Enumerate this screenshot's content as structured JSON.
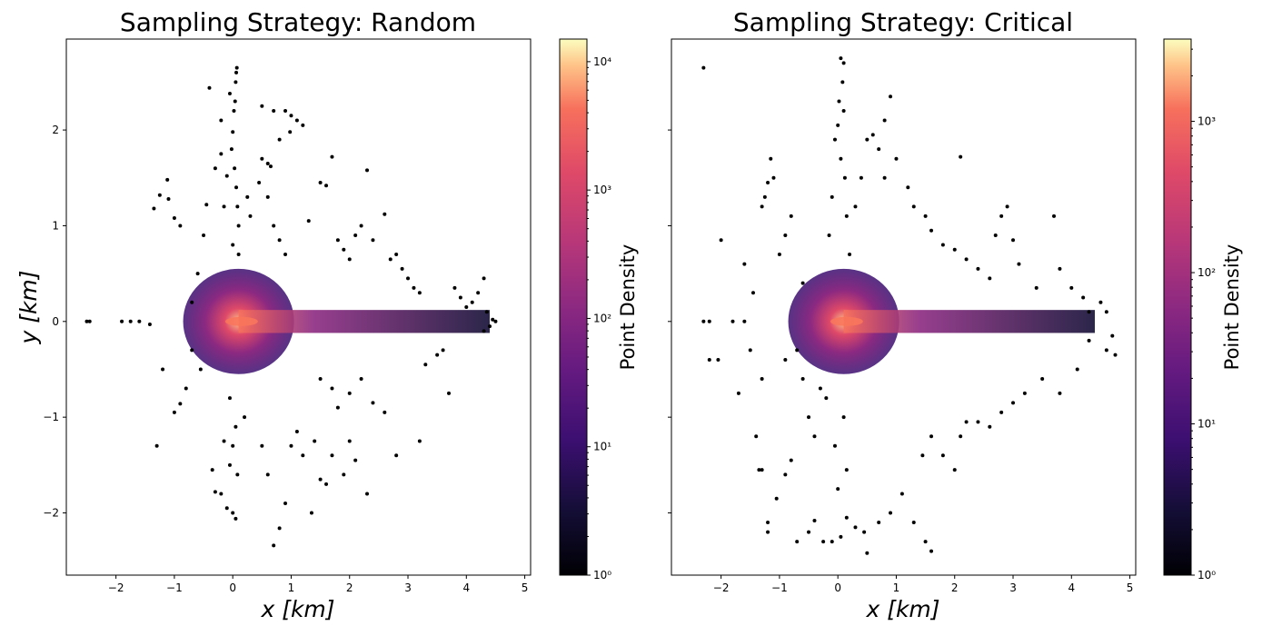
{
  "chart_data": [
    {
      "type": "scatter",
      "title": "Sampling Strategy: Random",
      "xlabel": "x [km]",
      "ylabel": "y [km]",
      "xlim": [
        -2.85,
        5.1
      ],
      "ylim": [
        -2.65,
        2.95
      ],
      "xticks": [
        -2,
        -1,
        0,
        1,
        2,
        3,
        4,
        5
      ],
      "xtick_labels": [
        "−2",
        "−1",
        "0",
        "1",
        "2",
        "3",
        "4",
        "5"
      ],
      "yticks": [
        -2,
        -1,
        0,
        1,
        2
      ],
      "ytick_labels": [
        "−2",
        "−1",
        "0",
        "1",
        "2"
      ],
      "point_color": "#000000",
      "density_core_color": "#f8765c",
      "colorbar": {
        "label": "Point Density",
        "scale": "log",
        "colormap": "magma",
        "range": [
          1,
          15000
        ],
        "ticks": [
          1,
          10,
          100,
          1000,
          10000
        ],
        "tick_labels": [
          "10⁰",
          "10¹",
          "10²",
          "10³",
          "10⁴"
        ]
      },
      "series": [
        {
          "points": [
            [
              -2.5,
              0
            ],
            [
              -2.45,
              0
            ],
            [
              -1.9,
              0
            ],
            [
              -1.75,
              0
            ],
            [
              -1.6,
              0
            ],
            [
              -1.42,
              -0.03
            ],
            [
              -1.3,
              -1.3
            ],
            [
              -1.35,
              1.18
            ],
            [
              -1.25,
              1.32
            ],
            [
              -1.12,
              1.48
            ],
            [
              -1.1,
              1.28
            ],
            [
              -1.0,
              1.08
            ],
            [
              -0.9,
              1.0
            ],
            [
              -1.2,
              -0.5
            ],
            [
              -1.0,
              -0.95
            ],
            [
              -0.9,
              -0.86
            ],
            [
              -0.8,
              -0.7
            ],
            [
              -0.7,
              -0.3
            ],
            [
              -0.7,
              0.2
            ],
            [
              -0.6,
              0.5
            ],
            [
              -0.55,
              -0.5
            ],
            [
              -0.5,
              0.9
            ],
            [
              -0.45,
              1.22
            ],
            [
              -0.4,
              2.44
            ],
            [
              -0.3,
              1.6
            ],
            [
              -0.2,
              1.75
            ],
            [
              -0.2,
              2.1
            ],
            [
              -0.15,
              1.2
            ],
            [
              -0.1,
              1.52
            ],
            [
              -0.05,
              2.38
            ],
            [
              -0.35,
              -1.55
            ],
            [
              -0.3,
              -1.78
            ],
            [
              -0.2,
              -1.8
            ],
            [
              -0.15,
              -1.25
            ],
            [
              -0.1,
              -1.95
            ],
            [
              -0.05,
              -1.5
            ],
            [
              0.0,
              -2.0
            ],
            [
              0.05,
              -2.06
            ],
            [
              0.07,
              2.65
            ],
            [
              0.06,
              2.6
            ],
            [
              0.05,
              2.5
            ],
            [
              0.04,
              2.3
            ],
            [
              0.02,
              2.2
            ],
            [
              0.0,
              1.98
            ],
            [
              -0.02,
              1.8
            ],
            [
              0.03,
              1.6
            ],
            [
              0.06,
              1.4
            ],
            [
              0.08,
              1.2
            ],
            [
              0.1,
              1.0
            ],
            [
              0.0,
              0.8
            ],
            [
              0.1,
              0.7
            ],
            [
              -0.05,
              -0.8
            ],
            [
              0.05,
              -1.1
            ],
            [
              0.0,
              -1.3
            ],
            [
              0.08,
              -1.6
            ],
            [
              0.2,
              -1.0
            ],
            [
              0.25,
              1.3
            ],
            [
              0.3,
              1.1
            ],
            [
              0.45,
              1.45
            ],
            [
              0.5,
              1.7
            ],
            [
              0.6,
              1.65
            ],
            [
              0.65,
              1.62
            ],
            [
              0.5,
              2.25
            ],
            [
              0.7,
              2.2
            ],
            [
              0.9,
              2.2
            ],
            [
              1.0,
              2.15
            ],
            [
              1.1,
              2.1
            ],
            [
              1.2,
              2.05
            ],
            [
              0.98,
              1.98
            ],
            [
              0.8,
              1.9
            ],
            [
              0.6,
              1.3
            ],
            [
              0.7,
              1.0
            ],
            [
              0.8,
              0.85
            ],
            [
              0.9,
              0.7
            ],
            [
              0.5,
              -1.3
            ],
            [
              0.6,
              -1.6
            ],
            [
              0.7,
              -2.34
            ],
            [
              0.8,
              -2.16
            ],
            [
              0.9,
              -1.9
            ],
            [
              1.0,
              -1.3
            ],
            [
              1.1,
              -1.15
            ],
            [
              1.2,
              -1.4
            ],
            [
              1.35,
              -2.0
            ],
            [
              1.4,
              -1.25
            ],
            [
              1.5,
              -1.65
            ],
            [
              1.6,
              -1.7
            ],
            [
              1.7,
              -1.4
            ],
            [
              1.9,
              -1.6
            ],
            [
              2.0,
              -1.25
            ],
            [
              2.1,
              -1.45
            ],
            [
              2.3,
              -1.8
            ],
            [
              1.3,
              1.05
            ],
            [
              1.5,
              1.45
            ],
            [
              1.6,
              1.42
            ],
            [
              1.7,
              1.72
            ],
            [
              1.8,
              0.85
            ],
            [
              1.9,
              0.75
            ],
            [
              2.0,
              0.65
            ],
            [
              2.1,
              0.9
            ],
            [
              2.2,
              1.0
            ],
            [
              2.3,
              1.58
            ],
            [
              2.4,
              0.85
            ],
            [
              2.6,
              1.12
            ],
            [
              2.7,
              0.65
            ],
            [
              2.8,
              0.7
            ],
            [
              2.9,
              0.55
            ],
            [
              3.0,
              0.45
            ],
            [
              3.1,
              0.35
            ],
            [
              3.2,
              0.3
            ],
            [
              1.5,
              -0.6
            ],
            [
              1.7,
              -0.7
            ],
            [
              1.8,
              -0.9
            ],
            [
              2.0,
              -0.75
            ],
            [
              2.2,
              -0.6
            ],
            [
              2.4,
              -0.85
            ],
            [
              2.6,
              -0.95
            ],
            [
              2.8,
              -1.4
            ],
            [
              3.2,
              -1.25
            ],
            [
              3.3,
              -0.45
            ],
            [
              3.5,
              -0.35
            ],
            [
              3.6,
              -0.3
            ],
            [
              3.7,
              -0.75
            ],
            [
              3.8,
              0.35
            ],
            [
              3.9,
              0.25
            ],
            [
              4.0,
              0.15
            ],
            [
              4.1,
              0.2
            ],
            [
              4.2,
              0.3
            ],
            [
              4.3,
              0.45
            ],
            [
              4.35,
              0.1
            ],
            [
              4.45,
              0.02
            ],
            [
              4.4,
              -0.05
            ],
            [
              4.3,
              -0.1
            ],
            [
              4.5,
              0.0
            ]
          ]
        }
      ]
    },
    {
      "type": "scatter",
      "title": "Sampling Strategy: Critical",
      "xlabel": "x [km]",
      "ylabel": "",
      "xlim": [
        -2.85,
        5.1
      ],
      "ylim": [
        -2.65,
        2.95
      ],
      "xticks": [
        -2,
        -1,
        0,
        1,
        2,
        3,
        4,
        5
      ],
      "xtick_labels": [
        "−2",
        "−1",
        "0",
        "1",
        "2",
        "3",
        "4",
        "5"
      ],
      "yticks": [
        -2,
        -1,
        0,
        1,
        2
      ],
      "ytick_labels": [
        "",
        "",
        "",
        "",
        ""
      ],
      "point_color": "#000000",
      "density_core_color": "#f8765c",
      "colorbar": {
        "label": "Point Density",
        "scale": "log",
        "colormap": "magma",
        "range": [
          1,
          3500
        ],
        "ticks": [
          1,
          10,
          100,
          1000
        ],
        "tick_labels": [
          "10⁰",
          "10¹",
          "10²",
          "10³"
        ]
      },
      "series": [
        {
          "points": [
            [
              -2.3,
              2.65
            ],
            [
              -2.3,
              0.0
            ],
            [
              -2.2,
              0.0
            ],
            [
              -2.0,
              0.85
            ],
            [
              -2.2,
              -0.4
            ],
            [
              -2.05,
              -0.4
            ],
            [
              -1.8,
              0.0
            ],
            [
              -1.7,
              -0.75
            ],
            [
              -1.6,
              0.0
            ],
            [
              -1.5,
              -0.3
            ],
            [
              -1.45,
              0.3
            ],
            [
              -1.4,
              -1.2
            ],
            [
              -1.35,
              -1.55
            ],
            [
              -1.3,
              -1.55
            ],
            [
              -1.25,
              1.3
            ],
            [
              -1.3,
              1.2
            ],
            [
              -1.2,
              1.45
            ],
            [
              -1.15,
              1.7
            ],
            [
              -1.1,
              1.5
            ],
            [
              -1.2,
              -2.1
            ],
            [
              -1.2,
              -2.2
            ],
            [
              -1.05,
              -1.85
            ],
            [
              -0.9,
              -1.6
            ],
            [
              -0.8,
              -1.45
            ],
            [
              -0.7,
              -2.3
            ],
            [
              -0.5,
              -2.2
            ],
            [
              -0.4,
              -2.08
            ],
            [
              -0.25,
              -2.3
            ],
            [
              -0.1,
              -2.3
            ],
            [
              0.05,
              -2.25
            ],
            [
              0.15,
              -2.05
            ],
            [
              0.3,
              -2.15
            ],
            [
              0.45,
              -2.2
            ],
            [
              0.5,
              -2.42
            ],
            [
              0.7,
              -2.1
            ],
            [
              0.9,
              -2.0
            ],
            [
              1.1,
              -1.8
            ],
            [
              1.3,
              -2.1
            ],
            [
              1.5,
              -2.3
            ],
            [
              1.6,
              -2.4
            ],
            [
              1.45,
              -1.4
            ],
            [
              1.6,
              -1.2
            ],
            [
              1.8,
              -1.4
            ],
            [
              2.0,
              -1.55
            ],
            [
              2.1,
              -1.2
            ],
            [
              2.2,
              -1.05
            ],
            [
              2.4,
              -1.05
            ],
            [
              2.6,
              -1.1
            ],
            [
              2.8,
              -0.95
            ],
            [
              3.0,
              -0.85
            ],
            [
              3.2,
              -0.75
            ],
            [
              3.5,
              -0.6
            ],
            [
              3.8,
              -0.75
            ],
            [
              4.1,
              -0.5
            ],
            [
              4.3,
              -0.2
            ],
            [
              4.5,
              0.2
            ],
            [
              4.6,
              0.1
            ],
            [
              4.7,
              -0.15
            ],
            [
              4.75,
              -0.35
            ],
            [
              4.6,
              -0.3
            ],
            [
              0.05,
              2.75
            ],
            [
              0.1,
              2.7
            ],
            [
              0.08,
              2.5
            ],
            [
              0.02,
              2.3
            ],
            [
              0.1,
              2.2
            ],
            [
              0.0,
              2.05
            ],
            [
              -0.05,
              1.9
            ],
            [
              0.05,
              1.7
            ],
            [
              0.12,
              1.5
            ],
            [
              -0.1,
              1.3
            ],
            [
              0.15,
              1.1
            ],
            [
              -0.15,
              0.9
            ],
            [
              0.2,
              0.7
            ],
            [
              -0.2,
              -0.8
            ],
            [
              0.1,
              -1.0
            ],
            [
              -0.05,
              -1.3
            ],
            [
              0.15,
              -1.55
            ],
            [
              0.0,
              -1.75
            ],
            [
              0.3,
              1.2
            ],
            [
              0.4,
              1.5
            ],
            [
              0.5,
              1.9
            ],
            [
              0.6,
              1.95
            ],
            [
              0.7,
              1.8
            ],
            [
              0.8,
              2.1
            ],
            [
              0.9,
              2.35
            ],
            [
              1.0,
              1.7
            ],
            [
              0.8,
              1.5
            ],
            [
              1.2,
              1.4
            ],
            [
              1.3,
              1.2
            ],
            [
              1.5,
              1.1
            ],
            [
              1.6,
              0.95
            ],
            [
              1.8,
              0.8
            ],
            [
              2.0,
              0.75
            ],
            [
              2.2,
              0.65
            ],
            [
              2.4,
              0.55
            ],
            [
              2.6,
              0.45
            ],
            [
              2.7,
              0.9
            ],
            [
              2.8,
              1.1
            ],
            [
              2.9,
              1.2
            ],
            [
              3.0,
              0.85
            ],
            [
              3.1,
              0.6
            ],
            [
              3.4,
              0.35
            ],
            [
              3.7,
              1.1
            ],
            [
              3.8,
              0.55
            ],
            [
              4.0,
              0.35
            ],
            [
              4.2,
              0.25
            ],
            [
              4.3,
              0.1
            ],
            [
              2.1,
              1.72
            ],
            [
              -0.8,
              1.1
            ],
            [
              -0.9,
              0.9
            ],
            [
              -1.0,
              0.7
            ],
            [
              -0.6,
              0.4
            ],
            [
              -0.7,
              -0.3
            ],
            [
              -0.6,
              -0.6
            ],
            [
              -0.5,
              -1.0
            ],
            [
              -0.4,
              -1.2
            ],
            [
              -0.3,
              -0.7
            ],
            [
              -0.9,
              -0.4
            ],
            [
              -1.3,
              -0.6
            ],
            [
              -1.6,
              0.6
            ]
          ]
        }
      ]
    }
  ]
}
